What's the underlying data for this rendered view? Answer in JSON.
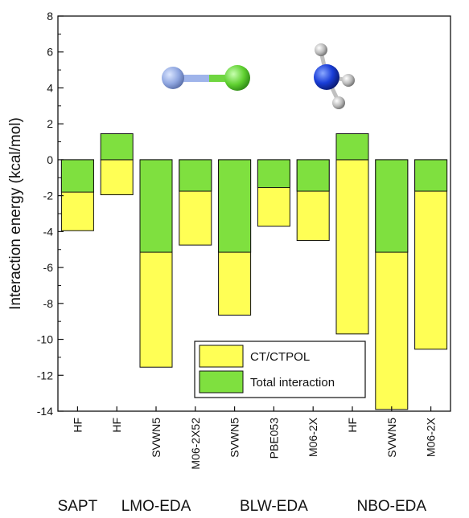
{
  "chart_data": {
    "type": "bar",
    "ylabel": "Interaction energy (kcal/mol)",
    "ylim": [
      -14,
      8
    ],
    "yticks": [
      -14,
      -12,
      -10,
      -8,
      -6,
      -4,
      -2,
      0,
      2,
      4,
      6,
      8
    ],
    "categories": [
      "HF",
      "HF",
      "SVWN5",
      "M06-2X52",
      "SVWN5",
      "PBE053",
      "M06-2X",
      "HF",
      "SVWN5",
      "M06-2X"
    ],
    "groups": [
      {
        "name": "SAPT",
        "count": 1
      },
      {
        "name": "LMO-EDA",
        "count": 3
      },
      {
        "name": "BLW-EDA",
        "count": 3
      },
      {
        "name": "NBO-EDA",
        "count": 3
      }
    ],
    "series": [
      {
        "name": "CT/CTPOL",
        "color": "#ffff55",
        "values": [
          -3.95,
          -1.95,
          -11.55,
          -4.75,
          -8.65,
          -3.7,
          -4.5,
          -9.7,
          -13.9,
          -10.55
        ]
      },
      {
        "name": "Total interaction",
        "color": "#7fe03f",
        "values": [
          -1.8,
          1.45,
          -5.15,
          -1.75,
          -5.15,
          -1.55,
          -1.75,
          1.45,
          -5.15,
          -1.75
        ]
      }
    ],
    "legend_position": "bottom-center",
    "grid": false
  },
  "molecules": {
    "left": {
      "atoms": [
        "blue-grey-sphere",
        "green-sphere"
      ]
    },
    "right": {
      "atoms": [
        "blue-sphere",
        "grey-sphere",
        "grey-sphere",
        "grey-sphere"
      ]
    }
  }
}
